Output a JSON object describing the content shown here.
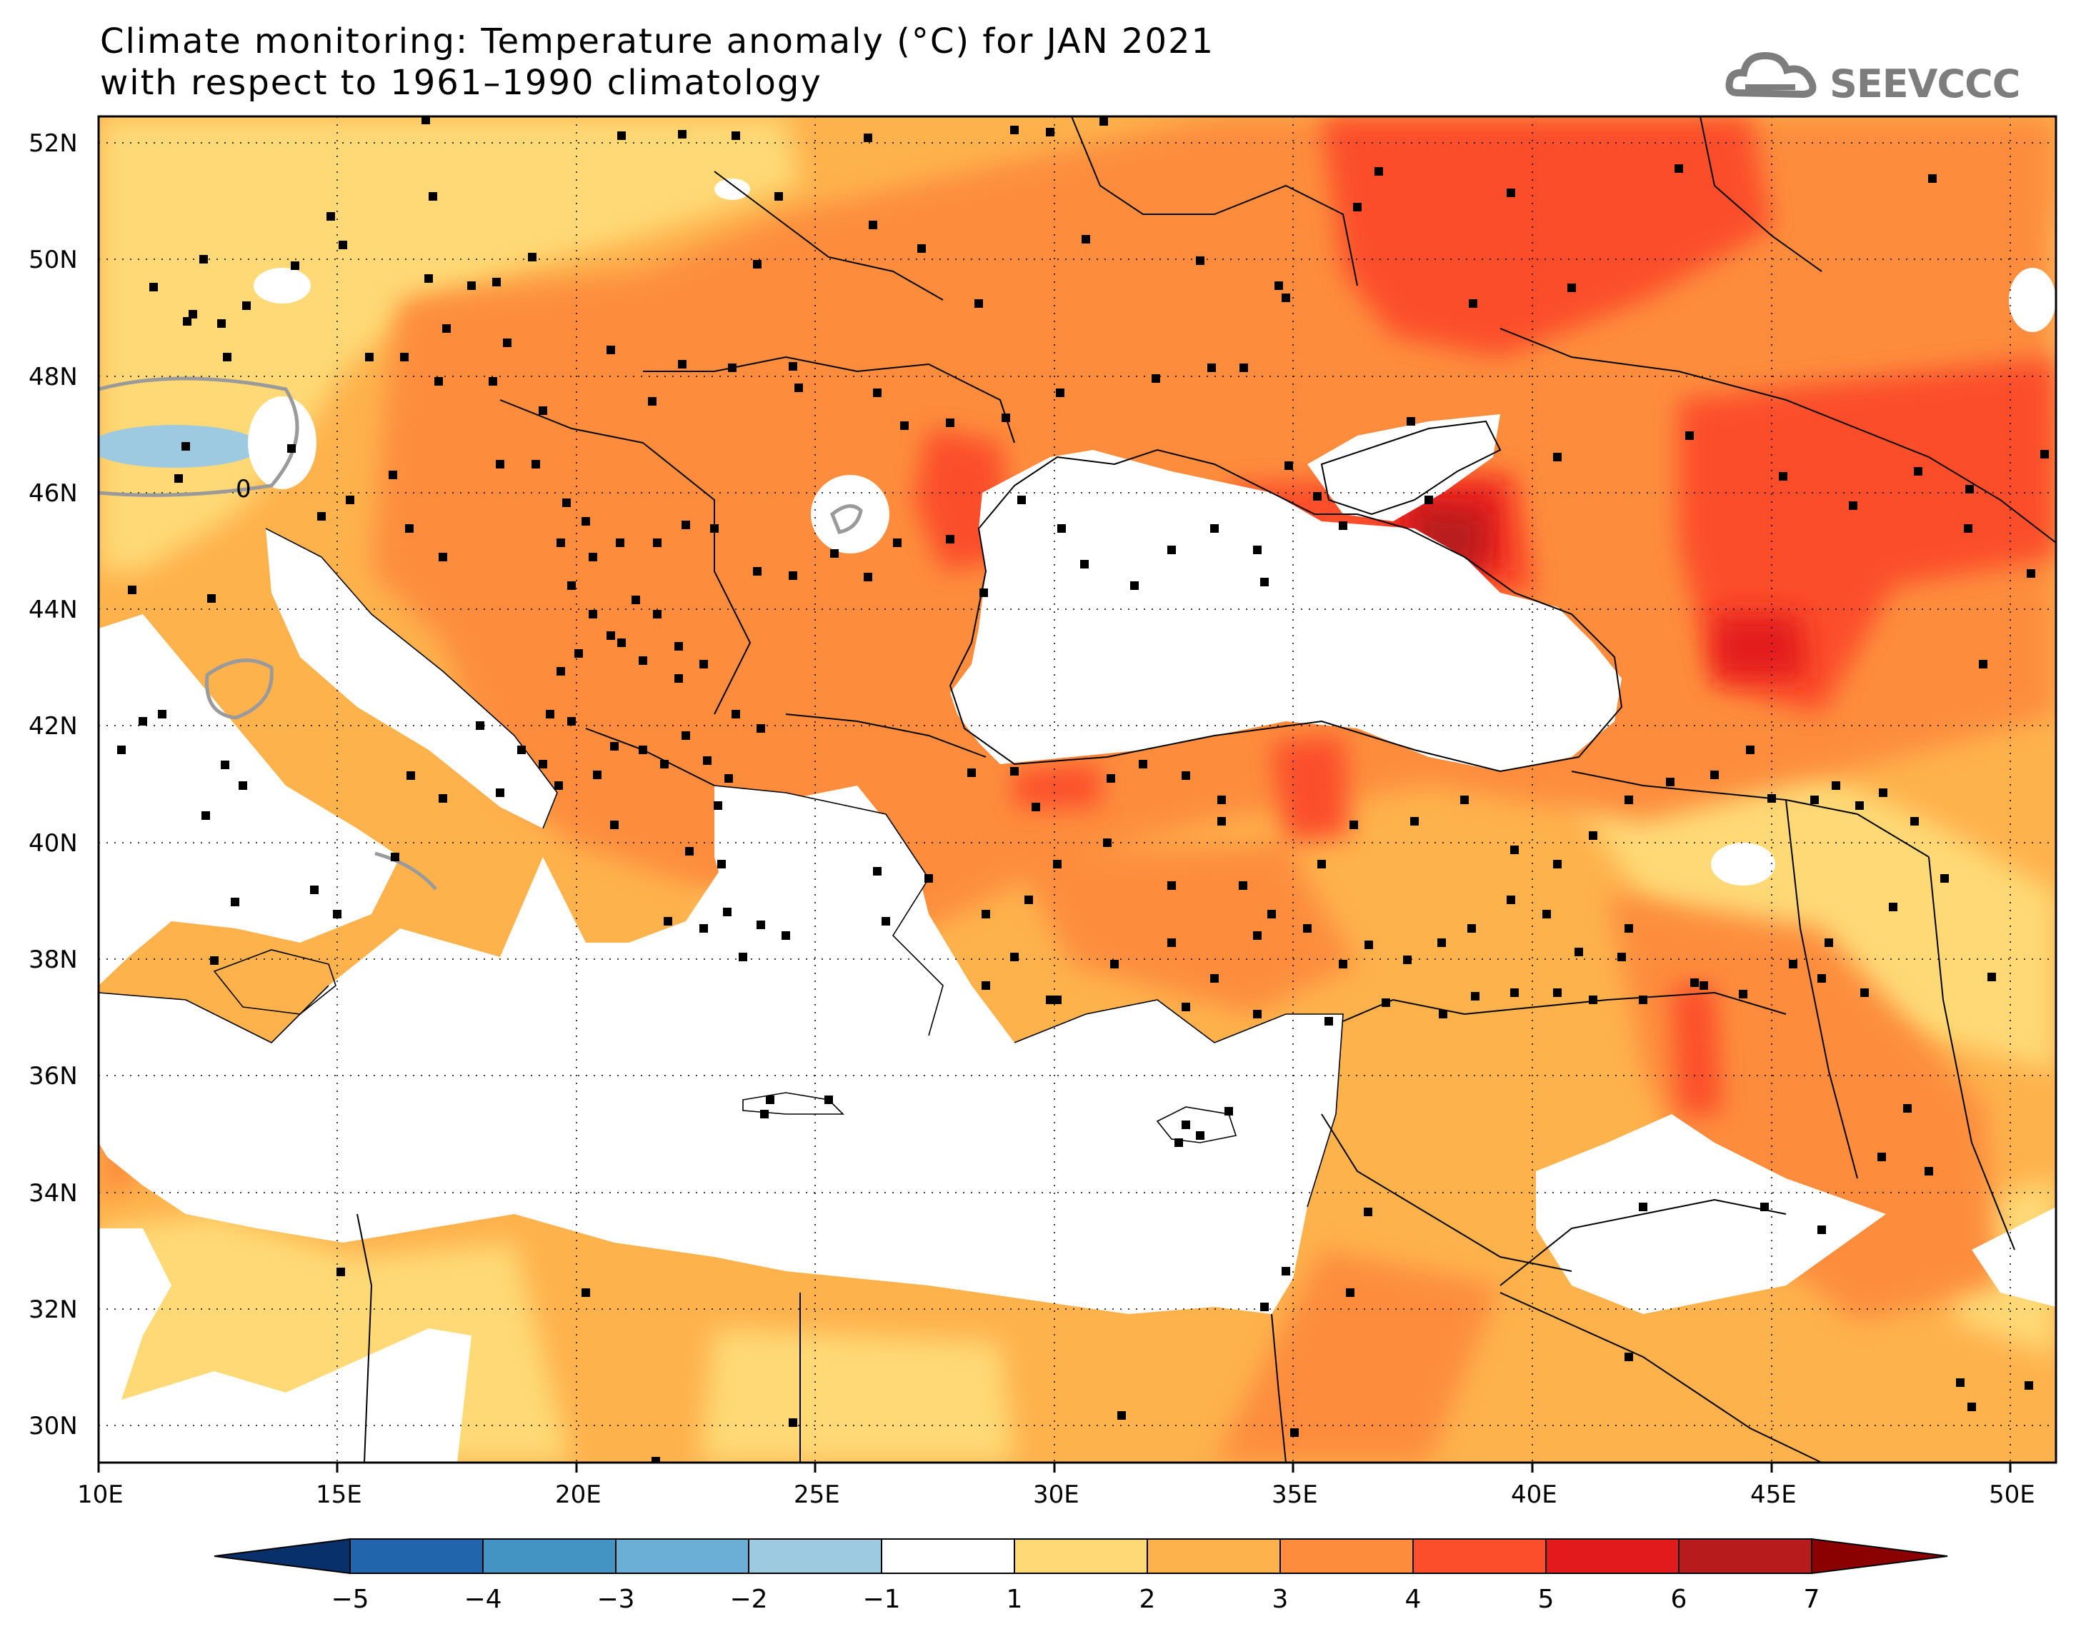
{
  "title": {
    "line1": "Climate monitoring: Temperature anomaly (°C) for JAN 2021",
    "line2": "with respect to 1961–1990 climatology"
  },
  "logo": {
    "text": "SEEVCCC",
    "icon": "cloud-icon",
    "color": "#7d7d7d"
  },
  "map": {
    "lon_labels": [
      "10E",
      "15E",
      "20E",
      "25E",
      "30E",
      "35E",
      "40E",
      "45E",
      "50E"
    ],
    "lat_labels": [
      "52N",
      "50N",
      "48N",
      "46N",
      "44N",
      "42N",
      "40N",
      "38N",
      "36N",
      "34N",
      "32N",
      "30N"
    ],
    "contour_label": "0"
  },
  "colorbar": {
    "labels": [
      "−5",
      "−4",
      "−3",
      "−2",
      "−1",
      "1",
      "2",
      "3",
      "4",
      "5",
      "6",
      "7"
    ],
    "colors": [
      "#08306b",
      "#2166ac",
      "#4393c3",
      "#6baed6",
      "#9ecae1",
      "#ffffff",
      "#fed976",
      "#feb24c",
      "#fd8d3c",
      "#fc4e2a",
      "#e31a1c",
      "#b81b1b",
      "#8b0000"
    ]
  }
}
